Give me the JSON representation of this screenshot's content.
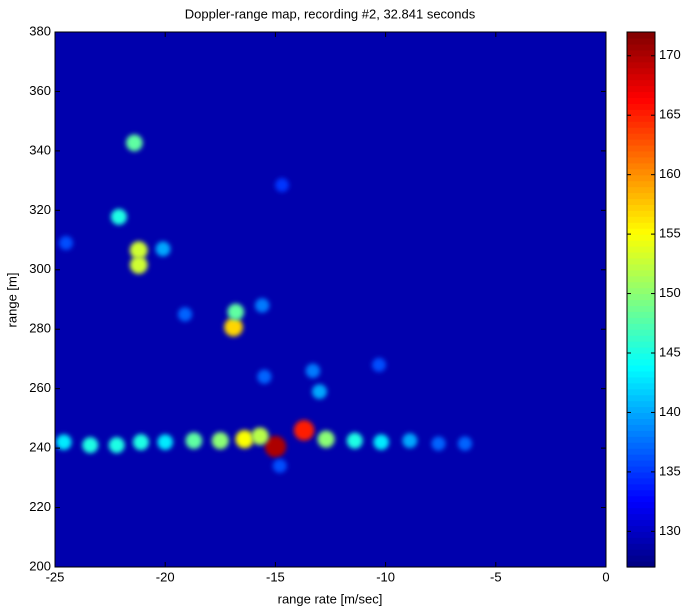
{
  "chart_data": {
    "type": "heatmap",
    "title": "Doppler-range map, recording #2, 32.841 seconds",
    "x_label": "range rate [m/sec]",
    "y_label": "range [m]",
    "xlim": [
      -25,
      0
    ],
    "ylim": [
      200,
      380
    ],
    "xticks": [
      -25,
      -20,
      -15,
      -10,
      -5,
      0
    ],
    "yticks": [
      200,
      220,
      240,
      260,
      280,
      300,
      320,
      340,
      360,
      380
    ],
    "colormap": "jet",
    "clim": [
      127,
      172
    ],
    "cticks": [
      130,
      135,
      140,
      145,
      150,
      155,
      160,
      165,
      170
    ],
    "background": 129,
    "x": [
      -21.4,
      -22.1,
      -21.2,
      -21.2,
      -20.1,
      -16.9,
      -16.8,
      -15.0,
      -13.7,
      -24.6,
      -23.4,
      -22.2,
      -21.1,
      -20.0,
      -18.7,
      -17.5,
      -16.4,
      -15.7,
      -12.7,
      -11.4,
      -10.2,
      -8.9,
      -7.6,
      -6.4,
      -24.5,
      -14.7,
      -13.0,
      -13.3,
      -15.6,
      -19.1,
      -10.3,
      -15.5,
      -14.8
    ],
    "y": [
      342.7,
      317.8,
      306.6,
      301.6,
      307,
      280.7,
      285.8,
      240.5,
      246,
      242,
      241,
      241,
      242,
      242,
      242.5,
      242.5,
      243,
      244,
      243,
      242.5,
      242,
      242.5,
      241.5,
      241.5,
      309,
      328.5,
      259,
      266,
      288,
      285,
      268,
      264,
      234
    ],
    "values": [
      148,
      145,
      153,
      153,
      140,
      157,
      148,
      170,
      165,
      143,
      145,
      145,
      145,
      143,
      148,
      150,
      155,
      152,
      150,
      145,
      143,
      140,
      137,
      137,
      136,
      135,
      140,
      138,
      138,
      137,
      136,
      137,
      136
    ]
  }
}
